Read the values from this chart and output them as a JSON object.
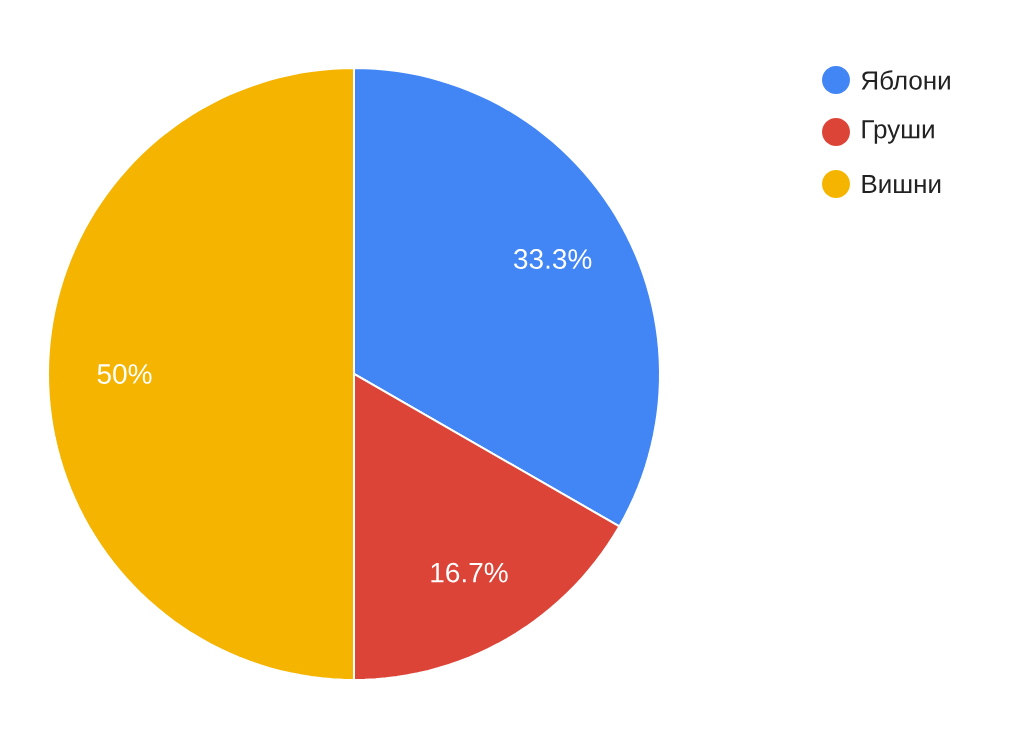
{
  "chart_data": {
    "type": "pie",
    "categories": [
      "Яблони",
      "Груши",
      "Вишни"
    ],
    "values": [
      33.3,
      16.7,
      50
    ],
    "colors": [
      "#4285f4",
      "#db4437",
      "#f4b400"
    ],
    "value_labels": [
      "33.3%",
      "16.7%",
      "50%"
    ],
    "legend": "top right"
  }
}
